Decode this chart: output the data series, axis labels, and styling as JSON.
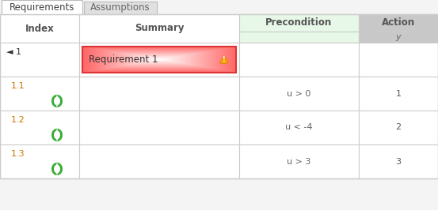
{
  "tab_labels": [
    "Requirements",
    "Assumptions"
  ],
  "col_headers": [
    "Index",
    "Summary",
    "Precondition",
    "Action"
  ],
  "sub_header_action": "y",
  "rows": [
    {
      "index": "◄ 1",
      "summary": "Requirement 1",
      "precondition": "",
      "action": "",
      "highlight": true,
      "has_icon": false
    },
    {
      "index": "1.1",
      "summary": "",
      "precondition": "u > 0",
      "action": "1",
      "highlight": false,
      "has_icon": true
    },
    {
      "index": "1.2",
      "summary": "",
      "precondition": "u < -4",
      "action": "2",
      "highlight": false,
      "has_icon": true
    },
    {
      "index": "1.3",
      "summary": "",
      "precondition": "u > 3",
      "action": "3",
      "highlight": false,
      "has_icon": true
    }
  ],
  "fig_w": 5.53,
  "fig_h": 2.66,
  "dpi": 100,
  "bg_color": "#f4f4f4",
  "tab_active_bg": "#ffffff",
  "tab_inactive_bg": "#e0e0e0",
  "tab_border": "#bbbbbb",
  "table_bg": "#ffffff",
  "grid_color": "#cccccc",
  "precond_header_bg": "#e8f8e8",
  "action_header_bg": "#c8c8c8",
  "header_text_color": "#555555",
  "index_color_parent": "#333333",
  "index_color_child": "#cc7700",
  "precond_text_color": "#666666",
  "action_text_color": "#555555",
  "highlight_fill": "#ffe8e8",
  "highlight_border": "#dd3333",
  "alert_fill": "#ffaa00",
  "alert_border": "#cc7700",
  "green_dark": "#2a8a2a",
  "green_light": "#44cc44",
  "white": "#ffffff"
}
